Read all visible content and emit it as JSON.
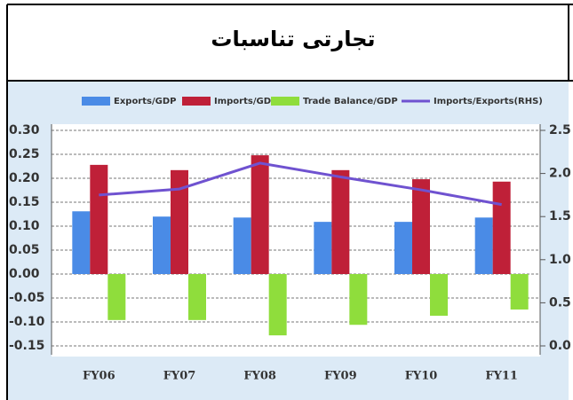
{
  "chart_data": {
    "type": "bar",
    "title": "تجارتی تناسبات",
    "categories": [
      "FY06",
      "FY07",
      "FY08",
      "FY09",
      "FY10",
      "FY11"
    ],
    "series": [
      {
        "name": "Exports/GDP",
        "color": "#4a8be6",
        "type": "bar",
        "values": [
          0.131,
          0.12,
          0.118,
          0.109,
          0.109,
          0.118
        ]
      },
      {
        "name": "Imports/GDP",
        "color": "#bf2038",
        "type": "bar",
        "values": [
          0.228,
          0.217,
          0.248,
          0.217,
          0.198,
          0.193
        ]
      },
      {
        "name": "Trade Balance/GDP",
        "color": "#8fdd3c",
        "type": "bar",
        "values": [
          -0.096,
          -0.096,
          -0.128,
          -0.106,
          -0.087,
          -0.074
        ]
      },
      {
        "name": "Imports/Exports(RHS)",
        "color": "#6f52d0",
        "type": "line",
        "axis": "y2",
        "values": [
          1.75,
          1.82,
          2.12,
          1.96,
          1.81,
          1.64
        ]
      }
    ],
    "ylim": [
      -0.15,
      0.3
    ],
    "yticks": [
      {
        "value": 0.3,
        "label": "0.30"
      },
      0.25,
      {
        "value": 0.2,
        "label": "0.20"
      },
      0.15,
      {
        "value": 0.1,
        "label": "0.10"
      },
      0.05,
      {
        "value": 0,
        "label": "0.00"
      },
      -0.05,
      {
        "value": -0.1,
        "label": "-0.10"
      },
      -0.15
    ],
    "y2lim": [
      0,
      2.5
    ],
    "y2ticks": [
      2.5,
      {
        "value": 2.0,
        "label": "2.0"
      },
      1.5,
      {
        "value": 1.0,
        "label": "1.0"
      },
      0.5,
      {
        "value": 0,
        "label": "0.0"
      }
    ],
    "grid": true,
    "legend": "top"
  }
}
